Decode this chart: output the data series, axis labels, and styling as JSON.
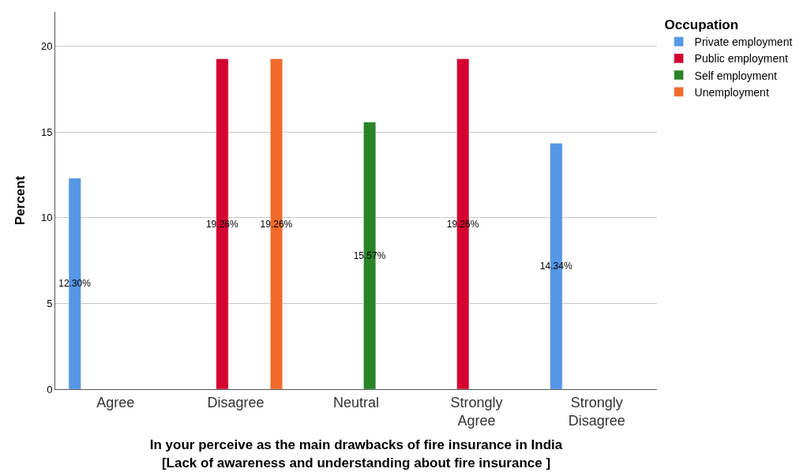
{
  "chart_data": {
    "type": "bar",
    "xlabel": "In your perceive as the main drawbacks of fire insurance in India\n[Lack of awareness and understanding about fire insurance ]",
    "ylabel": "Percent",
    "legend_title": "Occupation",
    "categories": [
      "Agree",
      "Disagree",
      "Neutral",
      "Strongly\nAgree",
      "Strongly\nDisagree"
    ],
    "series": [
      {
        "name": "Private employment",
        "color": "#5596e6",
        "values": [
          12.3,
          null,
          null,
          null,
          14.34
        ],
        "value_labels": [
          "12.30%",
          null,
          null,
          null,
          "14.34%"
        ]
      },
      {
        "name": "Public employment",
        "color": "#d5002f",
        "values": [
          null,
          19.26,
          null,
          19.26,
          null
        ],
        "value_labels": [
          null,
          "19.26%",
          null,
          "19.26%",
          null
        ]
      },
      {
        "name": "Self employment",
        "color": "#2a8427",
        "values": [
          null,
          null,
          15.57,
          null,
          null
        ],
        "value_labels": [
          null,
          null,
          "15.57%",
          null,
          null
        ]
      },
      {
        "name": "Unemployment",
        "color": "#f26a2a",
        "values": [
          null,
          19.26,
          null,
          null,
          null
        ],
        "value_labels": [
          null,
          "19.26%",
          null,
          null,
          null
        ]
      }
    ],
    "ylim": [
      0,
      22
    ],
    "yticks": [
      0,
      5,
      10,
      15,
      20
    ],
    "grid": "y",
    "legend": "top right"
  }
}
